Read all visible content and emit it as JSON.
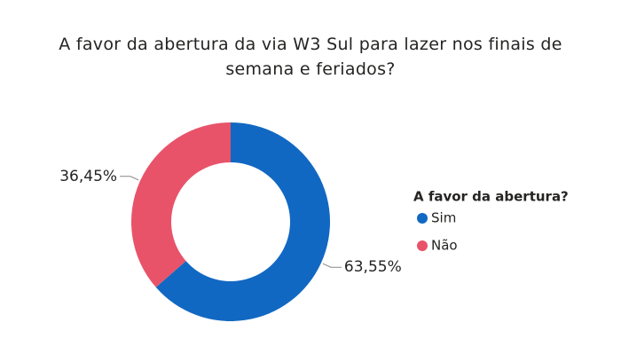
{
  "chart_data": {
    "type": "donut",
    "title": "A favor da abertura da via W3 Sul para lazer nos finais de semana e feriados?",
    "legend_title": "A favor da abertura?",
    "categories": [
      "Sim",
      "Não"
    ],
    "values": [
      63.55,
      36.45
    ],
    "value_labels": [
      "63,55%",
      "36,45%"
    ],
    "colors": [
      "#1168c2",
      "#e8536a"
    ],
    "legend": "right"
  }
}
